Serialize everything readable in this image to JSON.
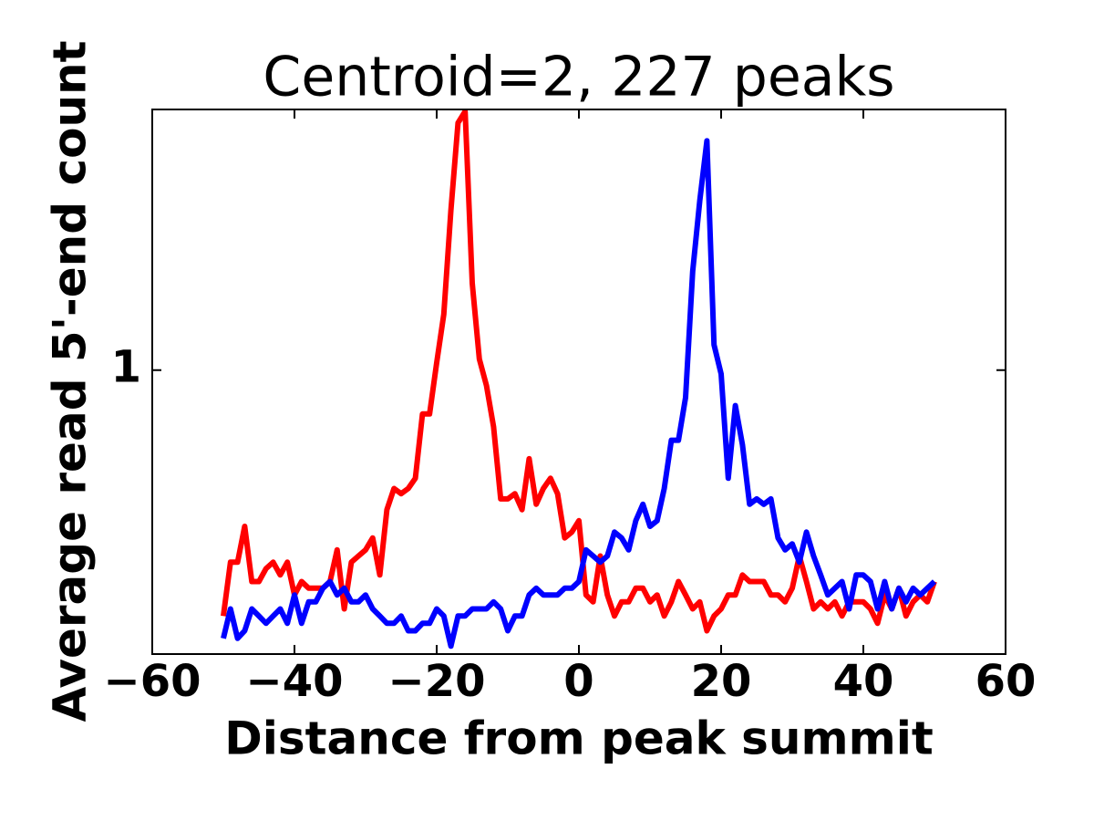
{
  "chart_data": {
    "type": "line",
    "title": "Centroid=2, 227 peaks",
    "xlabel": "Distance from peak summit",
    "ylabel": "Average read 5'-end count",
    "x": [
      -50,
      -49,
      -48,
      -47,
      -46,
      -45,
      -44,
      -43,
      -42,
      -41,
      -40,
      -39,
      -38,
      -37,
      -36,
      -35,
      -34,
      -33,
      -32,
      -31,
      -30,
      -29,
      -28,
      -27,
      -26,
      -25,
      -24,
      -23,
      -22,
      -21,
      -20,
      -19,
      -18,
      -17,
      -16,
      -15,
      -14,
      -13,
      -12,
      -11,
      -10,
      -9,
      -8,
      -7,
      -6,
      -5,
      -4,
      -3,
      -2,
      -1,
      0,
      1,
      2,
      3,
      4,
      5,
      6,
      7,
      8,
      9,
      10,
      11,
      12,
      13,
      14,
      15,
      16,
      17,
      18,
      19,
      20,
      21,
      22,
      23,
      24,
      25,
      26,
      27,
      28,
      29,
      30,
      31,
      32,
      33,
      34,
      35,
      36,
      37,
      38,
      39,
      40,
      41,
      42,
      43,
      44,
      45,
      46,
      47,
      48,
      49,
      50
    ],
    "series": [
      {
        "color": "#ff0000",
        "values": [
          0.52,
          0.6,
          0.6,
          0.66,
          0.57,
          0.57,
          0.59,
          0.6,
          0.58,
          0.6,
          0.55,
          0.57,
          0.56,
          0.56,
          0.56,
          0.57,
          0.62,
          0.53,
          0.6,
          0.61,
          0.62,
          0.64,
          0.58,
          0.69,
          0.73,
          0.72,
          0.73,
          0.75,
          0.89,
          0.89,
          1.02,
          1.16,
          1.53,
          1.93,
          1.99,
          1.26,
          1.03,
          0.96,
          0.86,
          0.71,
          0.71,
          0.72,
          0.69,
          0.79,
          0.7,
          0.73,
          0.75,
          0.72,
          0.64,
          0.65,
          0.67,
          0.55,
          0.54,
          0.61,
          0.55,
          0.52,
          0.54,
          0.54,
          0.56,
          0.56,
          0.54,
          0.55,
          0.52,
          0.54,
          0.57,
          0.55,
          0.53,
          0.54,
          0.5,
          0.52,
          0.53,
          0.55,
          0.55,
          0.58,
          0.57,
          0.57,
          0.57,
          0.55,
          0.55,
          0.54,
          0.56,
          0.61,
          0.57,
          0.53,
          0.54,
          0.53,
          0.54,
          0.52,
          0.54,
          0.54,
          0.54,
          0.53,
          0.51,
          0.55,
          0.53,
          0.56,
          0.52,
          0.54,
          0.55,
          0.54,
          0.57
        ]
      },
      {
        "color": "#0000ff",
        "values": [
          0.49,
          0.53,
          0.49,
          0.5,
          0.53,
          0.52,
          0.51,
          0.52,
          0.53,
          0.51,
          0.55,
          0.51,
          0.54,
          0.54,
          0.56,
          0.57,
          0.55,
          0.56,
          0.54,
          0.54,
          0.55,
          0.53,
          0.52,
          0.51,
          0.51,
          0.52,
          0.5,
          0.5,
          0.51,
          0.51,
          0.53,
          0.52,
          0.48,
          0.52,
          0.52,
          0.53,
          0.53,
          0.53,
          0.54,
          0.53,
          0.5,
          0.52,
          0.52,
          0.55,
          0.56,
          0.55,
          0.55,
          0.55,
          0.56,
          0.56,
          0.57,
          0.62,
          0.61,
          0.6,
          0.61,
          0.65,
          0.64,
          0.62,
          0.67,
          0.7,
          0.66,
          0.67,
          0.73,
          0.83,
          0.83,
          0.93,
          1.3,
          1.57,
          1.84,
          1.07,
          0.99,
          0.75,
          0.91,
          0.82,
          0.7,
          0.71,
          0.7,
          0.71,
          0.64,
          0.62,
          0.63,
          0.6,
          0.65,
          0.61,
          0.58,
          0.55,
          0.56,
          0.57,
          0.53,
          0.58,
          0.58,
          0.57,
          0.53,
          0.57,
          0.53,
          0.56,
          0.54,
          0.56,
          0.55,
          0.56,
          0.57
        ]
      }
    ],
    "xlim": [
      -60,
      60
    ],
    "xticks": [
      {
        "value": -60,
        "label": "−60"
      },
      {
        "value": -40,
        "label": "−40"
      },
      {
        "value": -20,
        "label": "−20"
      },
      0,
      20,
      40,
      60
    ],
    "ylim": [
      0.47,
      2.0
    ],
    "yticks": [
      1
    ],
    "yscale": "log",
    "grid": false
  }
}
